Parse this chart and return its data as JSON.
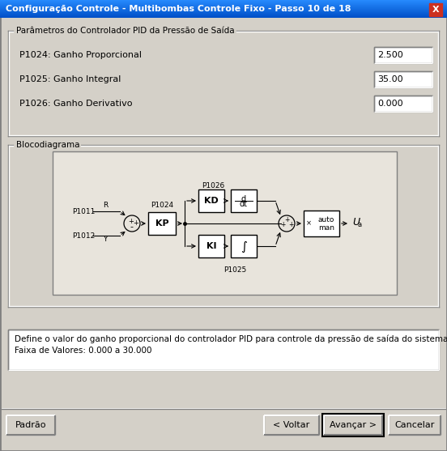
{
  "title": "Configuração Controle - Multibombas Controle Fixo - Passo 10 de 18",
  "title_bar_color": "#2060E0",
  "bg_color": "#D4D0C8",
  "group1_label": "Parâmetros do Controlador PID da Pressão de Saída",
  "params": [
    {
      "label": "P1024: Ganho Proporcional",
      "value": "2.500"
    },
    {
      "label": "P1025: Ganho Integral",
      "value": "35.00"
    },
    {
      "label": "P1026: Ganho Derivativo",
      "value": "0.000"
    }
  ],
  "group2_label": "Blocodiagrama",
  "description_line1": "Define o valor do ganho proporcional do controlador PID para controle da pressão de saída do sistema.",
  "description_line2": "Faixa de Valores: 0.000 a 30.000",
  "btn_padrao": "Padrão",
  "btn_voltar": "< Voltar",
  "btn_avancar": "Avançar >",
  "btn_cancelar": "Cancelar"
}
